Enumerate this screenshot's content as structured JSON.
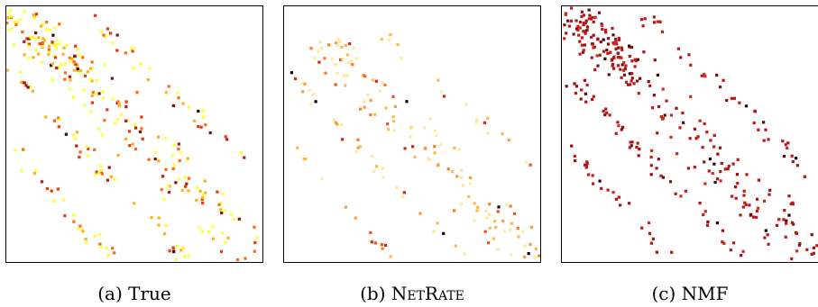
{
  "chart_data": [
    {
      "type": "heatmap",
      "caption": "(a) True",
      "colormap": [
        "#ffff33",
        "#ffb020",
        "#ff6a10",
        "#e83a0c",
        "#c01810",
        "#8a0c0c",
        "#2a0a0a"
      ],
      "seed": 11,
      "bands": [
        {
          "start": [
            0.02,
            0.02
          ],
          "end": [
            0.98,
            0.98
          ],
          "n": 160,
          "spread": 0.09
        },
        {
          "start": [
            0.02,
            0.26
          ],
          "end": [
            0.7,
            0.98
          ],
          "n": 55,
          "spread": 0.03
        },
        {
          "start": [
            0.04,
            0.56
          ],
          "end": [
            0.42,
            0.98
          ],
          "n": 28,
          "spread": 0.03
        },
        {
          "start": [
            0.3,
            0.02
          ],
          "end": [
            0.98,
            0.66
          ],
          "n": 38,
          "spread": 0.03
        },
        {
          "start": [
            0.02,
            0.02
          ],
          "end": [
            0.3,
            0.25
          ],
          "n": 70,
          "spread": 0.06
        }
      ]
    },
    {
      "type": "heatmap",
      "caption": "(b) NetRate",
      "colormap": [
        "#ffe89a",
        "#ffb84a",
        "#ff9a3a",
        "#ff7a1a",
        "#f0501a",
        "#d02a10",
        "#1a0606"
      ],
      "seed": 23,
      "bands": [
        {
          "start": [
            0.15,
            0.15
          ],
          "end": [
            0.98,
            0.98
          ],
          "n": 130,
          "spread": 0.07
        },
        {
          "start": [
            0.02,
            0.26
          ],
          "end": [
            0.7,
            0.98
          ],
          "n": 32,
          "spread": 0.02
        },
        {
          "start": [
            0.04,
            0.56
          ],
          "end": [
            0.42,
            0.98
          ],
          "n": 14,
          "spread": 0.02
        },
        {
          "start": [
            0.3,
            0.02
          ],
          "end": [
            0.98,
            0.66
          ],
          "n": 18,
          "spread": 0.03
        }
      ]
    },
    {
      "type": "heatmap",
      "caption": "(c) NMF",
      "colormap": [
        "#c01818",
        "#b01414",
        "#a01010",
        "#d02a1a",
        "#8a0c0c",
        "#6a0808",
        "#2a0404"
      ],
      "seed": 37,
      "bands": [
        {
          "start": [
            0.02,
            0.02
          ],
          "end": [
            0.98,
            0.98
          ],
          "n": 170,
          "spread": 0.08
        },
        {
          "start": [
            0.02,
            0.26
          ],
          "end": [
            0.7,
            0.98
          ],
          "n": 55,
          "spread": 0.03
        },
        {
          "start": [
            0.04,
            0.56
          ],
          "end": [
            0.42,
            0.98
          ],
          "n": 26,
          "spread": 0.03
        },
        {
          "start": [
            0.3,
            0.02
          ],
          "end": [
            0.98,
            0.66
          ],
          "n": 42,
          "spread": 0.03
        },
        {
          "start": [
            0.02,
            0.02
          ],
          "end": [
            0.3,
            0.25
          ],
          "n": 70,
          "spread": 0.06
        }
      ]
    }
  ],
  "captions": {
    "a_prefix": "(a) ",
    "a_name": "True",
    "b_prefix": "(b) ",
    "b_name": "NetRate",
    "c_prefix": "(c) ",
    "c_name": "NMF"
  }
}
